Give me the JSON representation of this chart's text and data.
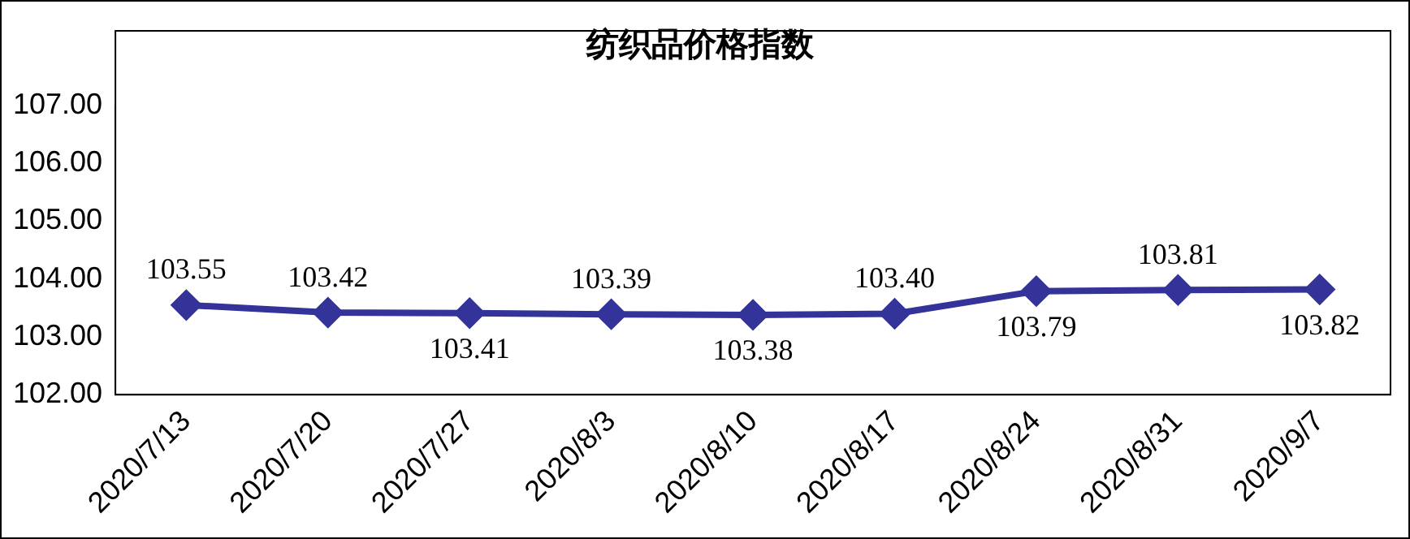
{
  "chart_data": {
    "type": "line",
    "title": "纺织品价格指数",
    "categories": [
      "2020/7/13",
      "2020/7/20",
      "2020/7/27",
      "2020/8/3",
      "2020/8/10",
      "2020/8/17",
      "2020/8/24",
      "2020/8/31",
      "2020/9/7"
    ],
    "series": [
      {
        "color": "#333399",
        "values": [
          103.55,
          103.42,
          103.41,
          103.39,
          103.38,
          103.4,
          103.79,
          103.81,
          103.82
        ],
        "value_labels": [
          "103.55",
          "103.42",
          "103.41",
          "103.39",
          "103.38",
          "103.40",
          "103.79",
          "103.81",
          "103.82"
        ]
      }
    ],
    "ylim": [
      102,
      107
    ],
    "yticks": [
      {
        "value": 102,
        "label": "102.00"
      },
      {
        "value": 103,
        "label": "103.00"
      },
      {
        "value": 104,
        "label": "104.00"
      },
      {
        "value": 105,
        "label": "105.00"
      },
      {
        "value": 106,
        "label": "106.00"
      },
      {
        "value": 107,
        "label": "107.00"
      }
    ],
    "grid": false,
    "legend": false,
    "marker": "diamond",
    "line_style": "solid"
  }
}
